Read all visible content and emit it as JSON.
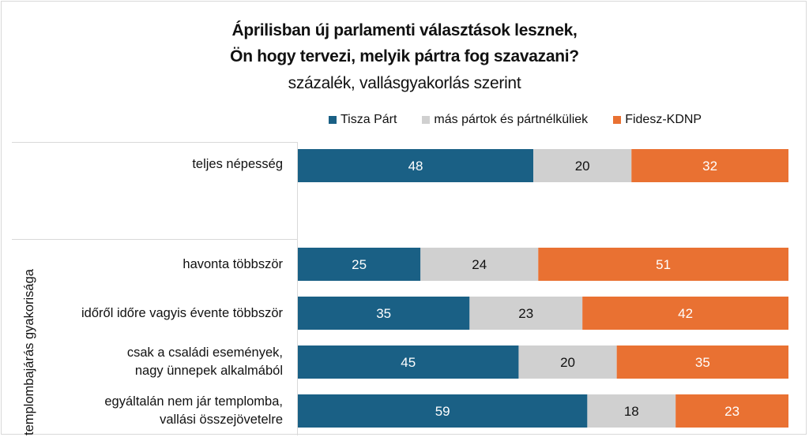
{
  "chart_data": {
    "type": "bar",
    "orientation": "horizontal",
    "stacked": "100%",
    "title": "Áprilisban új parlamenti választások lesznek, Ön hogy tervezi, melyik pártra fog szavazani?",
    "title_lines": [
      "Áprilisban új parlamenti választások lesznek,",
      "Ön hogy tervezi, melyik pártra fog szavazani?"
    ],
    "subtitle": "százalék, vallásgyakorlás szerint",
    "xlabel": "",
    "ylabel": "templombajárás gyakorisága",
    "group_label": "templombajárás gyakorisága",
    "xlim": [
      0,
      100
    ],
    "legend_position": "top",
    "grid": false,
    "categories": [
      [
        "teljes népesség"
      ],
      [
        "havonta többször"
      ],
      [
        "időről időre vagyis évente többször"
      ],
      [
        "csak a családi események,",
        "nagy ünnepek alkalmából"
      ],
      [
        "egyáltalán nem jár templomba,",
        "vallási összejövetelre"
      ]
    ],
    "series": [
      {
        "name": "Tisza Párt",
        "color": "#1a6085",
        "label_color": "#ffffff",
        "values": [
          48,
          25,
          35,
          45,
          59
        ]
      },
      {
        "name": "más pártok és pártnélküliek",
        "color": "#d0d0d0",
        "label_color": "#111111",
        "values": [
          20,
          24,
          23,
          20,
          18
        ]
      },
      {
        "name": "Fidesz-KDNP",
        "color": "#e97132",
        "label_color": "#ffffff",
        "values": [
          32,
          51,
          42,
          35,
          23
        ]
      }
    ]
  }
}
